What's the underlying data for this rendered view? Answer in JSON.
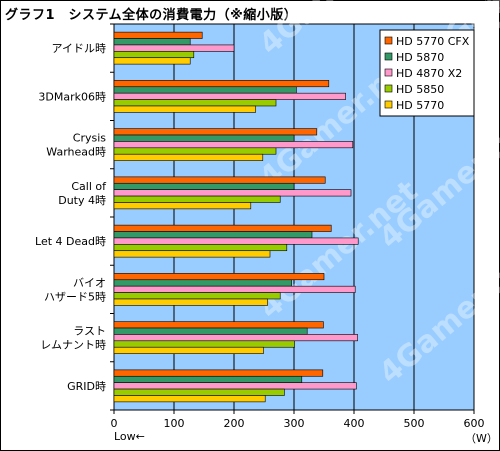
{
  "title": "グラフ1　システム全体の消費電力（※縮小版）",
  "footer": {
    "low_label": "Low←",
    "unit_label": "（W）"
  },
  "watermark_text": "4Gamer.net",
  "chart_data": {
    "type": "bar",
    "orientation": "horizontal",
    "categories": [
      [
        "アイドル時"
      ],
      [
        "3DMark06時"
      ],
      [
        "Crysis",
        "Warhead時"
      ],
      [
        "Call of",
        "Duty 4時"
      ],
      [
        "Let 4 Dead時"
      ],
      [
        "バイオ",
        "ハザード5時"
      ],
      [
        "ラスト",
        "レムナント時"
      ],
      [
        "GRID時"
      ]
    ],
    "series": [
      {
        "name": "HD 5770 CFX",
        "color": "#ff6600",
        "values": [
          147,
          358,
          338,
          352,
          362,
          350,
          349,
          348
        ]
      },
      {
        "name": "HD 5870",
        "color": "#339966",
        "values": [
          127,
          304,
          300,
          300,
          330,
          296,
          322,
          313
        ]
      },
      {
        "name": "HD 4870 X2",
        "color": "#ff99cc",
        "values": [
          200,
          386,
          398,
          395,
          407,
          402,
          406,
          404
        ]
      },
      {
        "name": "HD 5850",
        "color": "#99cc00",
        "values": [
          133,
          270,
          270,
          277,
          288,
          277,
          301,
          284
        ]
      },
      {
        "name": "HD 5770",
        "color": "#ffcc00",
        "values": [
          127,
          236,
          248,
          228,
          260,
          256,
          249,
          252
        ]
      }
    ],
    "xlim": [
      0,
      600
    ],
    "xticks": [
      0,
      100,
      200,
      300,
      400,
      500,
      600
    ],
    "xlabel": "（W）",
    "plot_background": "#99ccff",
    "grid": true,
    "legend_position": "top-right"
  }
}
